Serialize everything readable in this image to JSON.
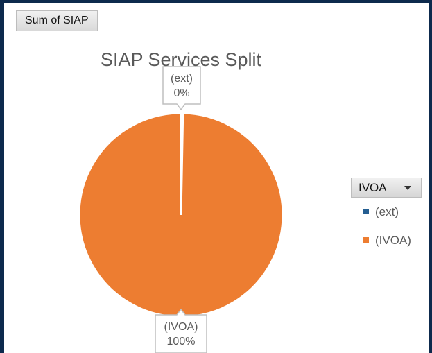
{
  "pivot": {
    "value_field": "Sum of SIAP",
    "legend_field": "IVOA"
  },
  "chart_data": {
    "type": "pie",
    "title": "SIAP Services Split",
    "slices": [
      {
        "label": "(ext)",
        "percent_label": "0%",
        "value": 0.003,
        "color": "#255e91"
      },
      {
        "label": "(IVOA)",
        "percent_label": "100%",
        "value": 0.997,
        "color": "#ed7d31"
      }
    ],
    "legend": [
      "(ext)",
      "(IVOA)"
    ],
    "legend_position": "right"
  }
}
